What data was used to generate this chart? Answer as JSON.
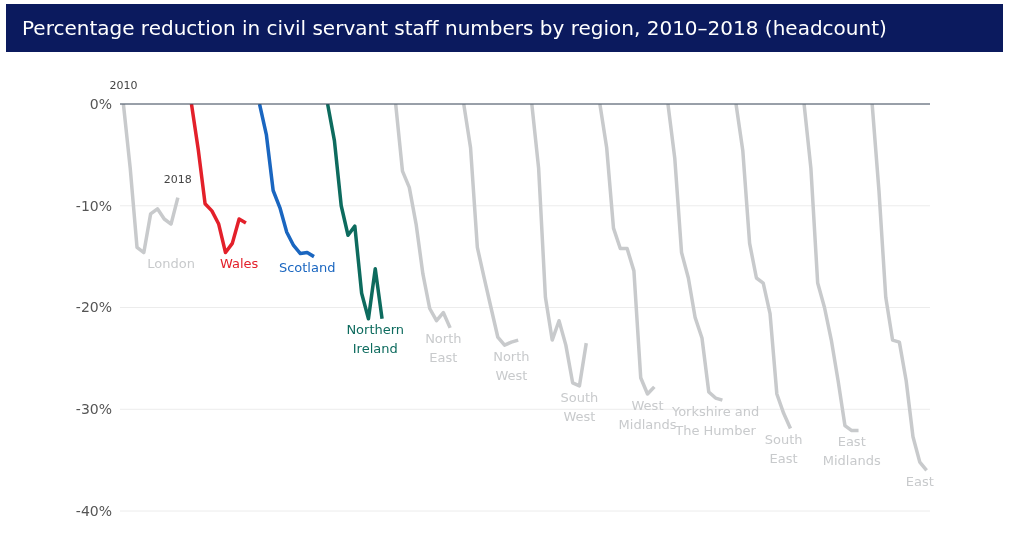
{
  "chart_data": {
    "type": "line",
    "title": "Percentage reduction in civil servant staff numbers by region, 2010–2018 (headcount)",
    "categories": [
      null,
      null,
      null,
      null,
      null,
      null,
      null,
      null,
      null,
      null,
      null,
      null,
      null,
      null,
      null,
      null,
      null,
      null,
      null,
      null,
      null,
      null,
      null,
      null,
      null,
      null,
      null,
      null,
      null,
      null,
      null,
      null,
      null,
      null,
      null,
      null,
      null,
      null,
      null,
      null,
      null,
      null,
      null,
      null,
      null,
      null,
      null,
      null,
      null,
      null,
      null,
      null,
      null,
      null,
      null,
      null,
      null,
      null,
      null,
      null,
      null,
      null,
      null,
      null,
      null,
      null,
      null,
      null,
      null,
      null,
      null,
      null,
      null,
      null,
      null,
      null,
      null,
      null,
      null,
      null,
      null,
      null,
      null,
      null,
      null,
      null,
      null,
      null,
      null,
      null,
      null,
      null,
      null,
      null,
      null,
      null,
      null,
      null,
      null,
      null,
      null,
      null,
      null,
      null,
      null,
      null,
      null,
      null,
      null,
      null,
      null,
      null,
      null,
      null,
      null,
      null,
      null,
      null,
      null
    ],
    "series": [
      {
        "name": "London",
        "color": "#c8cacc",
        "values": [
          0,
          -6.3,
          -14.1,
          -14.6,
          -10.8,
          -10.3,
          -11.3,
          -11.8,
          -9.2,
          null,
          null,
          null,
          null,
          null,
          null,
          null,
          null,
          null,
          null,
          null,
          null,
          null,
          null,
          null,
          null,
          null,
          null,
          null,
          null,
          null,
          null,
          null,
          null,
          null,
          null,
          null,
          null,
          null,
          null,
          null,
          null,
          null,
          null,
          null,
          null,
          null,
          null,
          null,
          null,
          null,
          null,
          null,
          null,
          null,
          null,
          null,
          null,
          null,
          null,
          null,
          null,
          null,
          null,
          null,
          null,
          null,
          null,
          null,
          null,
          null,
          null,
          null,
          null,
          null,
          null,
          null,
          null,
          null,
          null,
          null,
          null,
          null,
          null,
          null,
          null,
          null,
          null,
          null,
          null,
          null,
          null,
          null,
          null,
          null,
          null,
          null,
          null,
          null,
          null,
          null,
          null,
          null,
          null,
          null,
          null,
          null,
          null,
          null,
          null,
          null,
          null,
          null,
          null,
          null,
          null,
          null,
          null,
          null,
          null
        ]
      },
      {
        "name": "Wales",
        "color": "#e3202a",
        "values": [
          null,
          null,
          null,
          null,
          null,
          null,
          null,
          null,
          null,
          null,
          0,
          -4.5,
          -9.8,
          -10.5,
          -11.8,
          -14.6,
          -13.7,
          -11.3,
          -11.7,
          null,
          null,
          null,
          null,
          null,
          null,
          null,
          null,
          null,
          null,
          null,
          null,
          null,
          null,
          null,
          null,
          null,
          null,
          null,
          null,
          null,
          null,
          null,
          null,
          null,
          null,
          null,
          null,
          null,
          null,
          null,
          null,
          null,
          null,
          null,
          null,
          null,
          null,
          null,
          null,
          null,
          null,
          null,
          null,
          null,
          null,
          null,
          null,
          null,
          null,
          null,
          null,
          null,
          null,
          null,
          null,
          null,
          null,
          null,
          null,
          null,
          null,
          null,
          null,
          null,
          null,
          null,
          null,
          null,
          null,
          null,
          null,
          null,
          null,
          null,
          null,
          null,
          null,
          null,
          null,
          null,
          null,
          null,
          null,
          null,
          null,
          null,
          null,
          null,
          null,
          null,
          null,
          null,
          null,
          null,
          null,
          null,
          null,
          null,
          null
        ]
      },
      {
        "name": "Scotland",
        "color": "#1a66c0",
        "values": [
          null,
          null,
          null,
          null,
          null,
          null,
          null,
          null,
          null,
          null,
          null,
          null,
          null,
          null,
          null,
          null,
          null,
          null,
          null,
          null,
          0,
          -3,
          -8.5,
          -10.2,
          -12.6,
          -13.9,
          -14.7,
          -14.6,
          -15,
          null,
          null,
          null,
          null,
          null,
          null,
          null,
          null,
          null,
          null,
          null,
          null,
          null,
          null,
          null,
          null,
          null,
          null,
          null,
          null,
          null,
          null,
          null,
          null,
          null,
          null,
          null,
          null,
          null,
          null,
          null,
          null,
          null,
          null,
          null,
          null,
          null,
          null,
          null,
          null,
          null,
          null,
          null,
          null,
          null,
          null,
          null,
          null,
          null,
          null,
          null,
          null,
          null,
          null,
          null,
          null,
          null,
          null,
          null,
          null,
          null,
          null,
          null,
          null,
          null,
          null,
          null,
          null,
          null,
          null,
          null,
          null,
          null,
          null,
          null,
          null,
          null,
          null,
          null,
          null,
          null,
          null,
          null,
          null,
          null,
          null,
          null,
          null,
          null,
          null
        ]
      },
      {
        "name": "Northern Ireland",
        "color": "#0d6b5e",
        "values": [
          null,
          null,
          null,
          null,
          null,
          null,
          null,
          null,
          null,
          null,
          null,
          null,
          null,
          null,
          null,
          null,
          null,
          null,
          null,
          null,
          null,
          null,
          null,
          null,
          null,
          null,
          null,
          null,
          null,
          null,
          0,
          -3.6,
          -10,
          -12.9,
          -12,
          -18.6,
          -21.1,
          -16.2,
          -21.1,
          null,
          null,
          null,
          null,
          null,
          null,
          null,
          null,
          null,
          null,
          null,
          null,
          null,
          null,
          null,
          null,
          null,
          null,
          null,
          null,
          null,
          null,
          null,
          null,
          null,
          null,
          null,
          null,
          null,
          null,
          null,
          null,
          null,
          null,
          null,
          null,
          null,
          null,
          null,
          null,
          null,
          null,
          null,
          null,
          null,
          null,
          null,
          null,
          null,
          null,
          null,
          null,
          null,
          null,
          null,
          null,
          null,
          null,
          null,
          null,
          null,
          null,
          null,
          null,
          null,
          null,
          null,
          null,
          null,
          null,
          null,
          null,
          null,
          null,
          null,
          null,
          null,
          null,
          null,
          null
        ]
      },
      {
        "name": "North East",
        "color": "#c8cacc",
        "values": [
          null,
          null,
          null,
          null,
          null,
          null,
          null,
          null,
          null,
          null,
          null,
          null,
          null,
          null,
          null,
          null,
          null,
          null,
          null,
          null,
          null,
          null,
          null,
          null,
          null,
          null,
          null,
          null,
          null,
          null,
          null,
          null,
          null,
          null,
          null,
          null,
          null,
          null,
          null,
          null,
          0,
          -6.6,
          -8.2,
          -11.8,
          -16.7,
          -20.1,
          -21.3,
          -20.5,
          -22,
          null,
          null,
          null,
          null,
          null,
          null,
          null,
          null,
          null,
          null,
          null,
          null,
          null,
          null,
          null,
          null,
          null,
          null,
          null,
          null,
          null,
          null,
          null,
          null,
          null,
          null,
          null,
          null,
          null,
          null,
          null,
          null,
          null,
          null,
          null,
          null,
          null,
          null,
          null,
          null,
          null,
          null,
          null,
          null,
          null,
          null,
          null,
          null,
          null,
          null,
          null,
          null,
          null,
          null,
          null,
          null,
          null,
          null,
          null,
          null,
          null,
          null,
          null,
          null,
          null,
          null,
          null,
          null,
          null,
          null
        ]
      },
      {
        "name": "North West",
        "color": "#c8cacc",
        "values": [
          null,
          null,
          null,
          null,
          null,
          null,
          null,
          null,
          null,
          null,
          null,
          null,
          null,
          null,
          null,
          null,
          null,
          null,
          null,
          null,
          null,
          null,
          null,
          null,
          null,
          null,
          null,
          null,
          null,
          null,
          null,
          null,
          null,
          null,
          null,
          null,
          null,
          null,
          null,
          null,
          null,
          null,
          null,
          null,
          null,
          null,
          null,
          null,
          null,
          null,
          0,
          -4.3,
          -14.1,
          -17.1,
          -20,
          -22.9,
          -23.7,
          -23.4,
          -23.2,
          null,
          null,
          null,
          null,
          null,
          null,
          null,
          null,
          null,
          null,
          null,
          null,
          null,
          null,
          null,
          null,
          null,
          null,
          null,
          null,
          null,
          null,
          null,
          null,
          null,
          null,
          null,
          null,
          null,
          null,
          null,
          null,
          null,
          null,
          null,
          null,
          null,
          null,
          null,
          null,
          null,
          null,
          null,
          null,
          null,
          null,
          null,
          null,
          null,
          null,
          null,
          null,
          null,
          null,
          null,
          null,
          null,
          null,
          null,
          null
        ]
      },
      {
        "name": "South West",
        "color": "#c8cacc",
        "values": [
          null,
          null,
          null,
          null,
          null,
          null,
          null,
          null,
          null,
          null,
          null,
          null,
          null,
          null,
          null,
          null,
          null,
          null,
          null,
          null,
          null,
          null,
          null,
          null,
          null,
          null,
          null,
          null,
          null,
          null,
          null,
          null,
          null,
          null,
          null,
          null,
          null,
          null,
          null,
          null,
          null,
          null,
          null,
          null,
          null,
          null,
          null,
          null,
          null,
          null,
          null,
          null,
          null,
          null,
          null,
          null,
          null,
          null,
          null,
          null,
          0,
          -6.3,
          -19,
          -23.2,
          -21.3,
          -23.7,
          -27.4,
          -27.7,
          -23.5,
          null,
          null,
          null,
          null,
          null,
          null,
          null,
          null,
          null,
          null,
          null,
          null,
          null,
          null,
          null,
          null,
          null,
          null,
          null,
          null,
          null,
          null,
          null,
          null,
          null,
          null,
          null,
          null,
          null,
          null,
          null,
          null,
          null,
          null,
          null,
          null,
          null,
          null,
          null,
          null,
          null,
          null,
          null,
          null,
          null,
          null,
          null,
          null,
          null,
          null
        ]
      },
      {
        "name": "West Midlands",
        "color": "#c8cacc",
        "values": [
          null,
          null,
          null,
          null,
          null,
          null,
          null,
          null,
          null,
          null,
          null,
          null,
          null,
          null,
          null,
          null,
          null,
          null,
          null,
          null,
          null,
          null,
          null,
          null,
          null,
          null,
          null,
          null,
          null,
          null,
          null,
          null,
          null,
          null,
          null,
          null,
          null,
          null,
          null,
          null,
          null,
          null,
          null,
          null,
          null,
          null,
          null,
          null,
          null,
          null,
          null,
          null,
          null,
          null,
          null,
          null,
          null,
          null,
          null,
          null,
          null,
          null,
          null,
          null,
          null,
          null,
          null,
          null,
          null,
          null,
          0,
          -4.3,
          -12.2,
          -14.2,
          -14.2,
          -16.4,
          -26.9,
          -28.5,
          -27.8,
          null,
          null,
          null,
          null,
          null,
          null,
          null,
          null,
          null,
          null,
          null,
          null,
          null,
          null,
          null,
          null,
          null,
          null,
          null,
          null,
          null,
          null,
          null,
          null,
          null,
          null,
          null,
          null,
          null,
          null,
          null,
          null,
          null,
          null,
          null,
          null,
          null,
          null,
          null,
          null
        ]
      },
      {
        "name": "Yorkshire and The Humber",
        "color": "#c8cacc",
        "values": [
          null,
          null,
          null,
          null,
          null,
          null,
          null,
          null,
          null,
          null,
          null,
          null,
          null,
          null,
          null,
          null,
          null,
          null,
          null,
          null,
          null,
          null,
          null,
          null,
          null,
          null,
          null,
          null,
          null,
          null,
          null,
          null,
          null,
          null,
          null,
          null,
          null,
          null,
          null,
          null,
          null,
          null,
          null,
          null,
          null,
          null,
          null,
          null,
          null,
          null,
          null,
          null,
          null,
          null,
          null,
          null,
          null,
          null,
          null,
          null,
          null,
          null,
          null,
          null,
          null,
          null,
          null,
          null,
          null,
          null,
          null,
          null,
          null,
          null,
          null,
          null,
          null,
          null,
          null,
          null,
          0,
          -5.3,
          -14.6,
          -17.1,
          -21,
          -23,
          -28.3,
          -28.9,
          -29.1,
          null,
          null,
          null,
          null,
          null,
          null,
          null,
          null,
          null,
          null,
          null,
          null,
          null,
          null,
          null,
          null,
          null,
          null,
          null,
          null,
          null,
          null,
          null,
          null,
          null,
          null,
          null,
          null,
          null,
          null
        ]
      },
      {
        "name": "South East",
        "color": "#c8cacc",
        "values": [
          null,
          null,
          null,
          null,
          null,
          null,
          null,
          null,
          null,
          null,
          null,
          null,
          null,
          null,
          null,
          null,
          null,
          null,
          null,
          null,
          null,
          null,
          null,
          null,
          null,
          null,
          null,
          null,
          null,
          null,
          null,
          null,
          null,
          null,
          null,
          null,
          null,
          null,
          null,
          null,
          null,
          null,
          null,
          null,
          null,
          null,
          null,
          null,
          null,
          null,
          null,
          null,
          null,
          null,
          null,
          null,
          null,
          null,
          null,
          null,
          null,
          null,
          null,
          null,
          null,
          null,
          null,
          null,
          null,
          null,
          null,
          null,
          null,
          null,
          null,
          null,
          null,
          null,
          null,
          null,
          null,
          null,
          null,
          null,
          null,
          null,
          null,
          null,
          null,
          null,
          0,
          -4.6,
          -13.7,
          -17.1,
          -17.6,
          -20.6,
          -28.5,
          -30.4,
          -31.9,
          null,
          null,
          null,
          null,
          null,
          null,
          null,
          null,
          null,
          null,
          null,
          null,
          null,
          null,
          null,
          null,
          null,
          null,
          null,
          null
        ]
      },
      {
        "name": "East Midlands",
        "color": "#c8cacc",
        "values": [
          null,
          null,
          null,
          null,
          null,
          null,
          null,
          null,
          null,
          null,
          null,
          null,
          null,
          null,
          null,
          null,
          null,
          null,
          null,
          null,
          null,
          null,
          null,
          null,
          null,
          null,
          null,
          null,
          null,
          null,
          null,
          null,
          null,
          null,
          null,
          null,
          null,
          null,
          null,
          null,
          null,
          null,
          null,
          null,
          null,
          null,
          null,
          null,
          null,
          null,
          null,
          null,
          null,
          null,
          null,
          null,
          null,
          null,
          null,
          null,
          null,
          null,
          null,
          null,
          null,
          null,
          null,
          null,
          null,
          null,
          null,
          null,
          null,
          null,
          null,
          null,
          null,
          null,
          null,
          null,
          null,
          null,
          null,
          null,
          null,
          null,
          null,
          null,
          null,
          null,
          null,
          null,
          null,
          null,
          null,
          null,
          null,
          null,
          null,
          null,
          0,
          -6.3,
          -17.6,
          -20,
          -23.2,
          -27.2,
          -31.6,
          -32.1,
          -32.1,
          null,
          null,
          null,
          null,
          null,
          null,
          null,
          null,
          null,
          null
        ]
      },
      {
        "name": "East",
        "color": "#c8cacc",
        "values": [
          null,
          null,
          null,
          null,
          null,
          null,
          null,
          null,
          null,
          null,
          null,
          null,
          null,
          null,
          null,
          null,
          null,
          null,
          null,
          null,
          null,
          null,
          null,
          null,
          null,
          null,
          null,
          null,
          null,
          null,
          null,
          null,
          null,
          null,
          null,
          null,
          null,
          null,
          null,
          null,
          null,
          null,
          null,
          null,
          null,
          null,
          null,
          null,
          null,
          null,
          null,
          null,
          null,
          null,
          null,
          null,
          null,
          null,
          null,
          null,
          null,
          null,
          null,
          null,
          null,
          null,
          null,
          null,
          null,
          null,
          null,
          null,
          null,
          null,
          null,
          null,
          null,
          null,
          null,
          null,
          null,
          null,
          null,
          null,
          null,
          null,
          null,
          null,
          null,
          null,
          null,
          null,
          null,
          null,
          null,
          null,
          null,
          null,
          null,
          null,
          null,
          null,
          null,
          null,
          null,
          null,
          null,
          null,
          null,
          null,
          0,
          -8.5,
          -19,
          -23.2,
          -23.4,
          -27.2,
          -32.7,
          -35.2,
          -36
        ]
      }
    ],
    "ylim": [
      -40,
      0
    ],
    "yticks": [
      {
        "value": 0,
        "label": "0%"
      },
      {
        "value": -10,
        "label": "-10%"
      },
      {
        "value": -20,
        "label": "-20%"
      },
      {
        "value": -30,
        "label": "-30%"
      },
      {
        "value": -40,
        "label": "-40%"
      }
    ],
    "grid": "y",
    "legend": false,
    "tick_labels": "y",
    "annotations": [
      "2010",
      "2018"
    ]
  }
}
